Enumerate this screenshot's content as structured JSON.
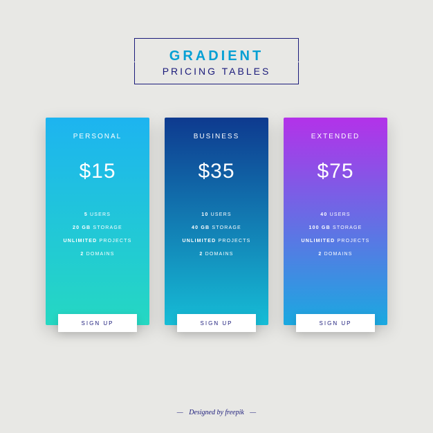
{
  "header": {
    "title_main": "GRADIENT",
    "title_sub": "PRICING TABLES",
    "title_main_color": "#06a0d4",
    "title_sub_color": "#1a1a7a",
    "border_color": "#1a1a7a"
  },
  "background_color": "#e8e8e5",
  "cards": [
    {
      "name": "PERSONAL",
      "price": "$15",
      "gradient_start": "#1db4f0",
      "gradient_end": "#25d8c2",
      "features": [
        {
          "bold": "5",
          "text": "USERS"
        },
        {
          "bold": "20 GB",
          "text": "STORAGE"
        },
        {
          "bold": "UNLIMITED",
          "text": "PROJECTS"
        },
        {
          "bold": "2",
          "text": "DOMAINS"
        }
      ],
      "button": "SIGN UP"
    },
    {
      "name": "BUSINESS",
      "price": "$35",
      "gradient_start": "#0e3a8f",
      "gradient_end": "#16bdd6",
      "features": [
        {
          "bold": "10",
          "text": "USERS"
        },
        {
          "bold": "40 GB",
          "text": "STORAGE"
        },
        {
          "bold": "UNLIMITED",
          "text": "PROJECTS"
        },
        {
          "bold": "2",
          "text": "DOMAINS"
        }
      ],
      "button": "SIGN UP"
    },
    {
      "name": "EXTENDED",
      "price": "$75",
      "gradient_start": "#b332e9",
      "gradient_end": "#1aa9e0",
      "features": [
        {
          "bold": "40",
          "text": "USERS"
        },
        {
          "bold": "100 GB",
          "text": "STORAGE"
        },
        {
          "bold": "UNLIMITED",
          "text": "PROJECTS"
        },
        {
          "bold": "2",
          "text": "DOMAINS"
        }
      ],
      "button": "SIGN UP"
    }
  ],
  "footer": {
    "text": "Designed by freepik"
  }
}
